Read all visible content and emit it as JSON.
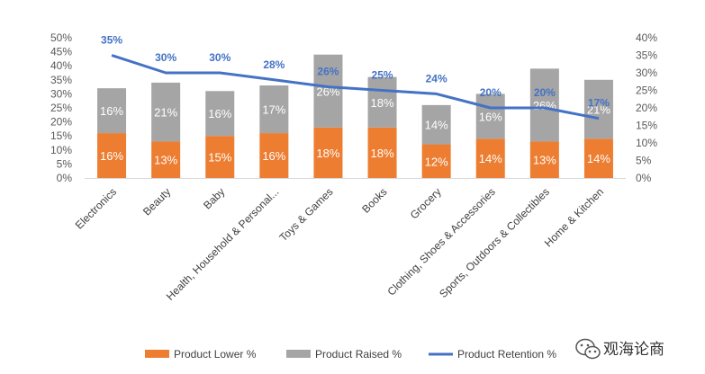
{
  "chart_data": {
    "type": "bar",
    "stacked": true,
    "categories": [
      "Electronics",
      "Beauty",
      "Baby",
      "Health, Household & Personal...",
      "Toys & Games",
      "Books",
      "Grocery",
      "Clothing, Shoes & Accessories",
      "Sports, Outdoors & Collectibles",
      "Home & Kitchen"
    ],
    "series": [
      {
        "name": "Product Lower %",
        "type": "bar",
        "axis": "left",
        "color": "#ED7D31",
        "values": [
          16,
          13,
          15,
          16,
          18,
          18,
          12,
          14,
          13,
          14
        ],
        "labels": [
          "16%",
          "13%",
          "15%",
          "16%",
          "18%",
          "18%",
          "12%",
          "14%",
          "13%",
          "14%"
        ]
      },
      {
        "name": "Product Raised %",
        "type": "bar",
        "axis": "left",
        "color": "#A5A5A5",
        "values": [
          16,
          21,
          16,
          17,
          26,
          18,
          14,
          16,
          26,
          21
        ],
        "labels": [
          "16%",
          "21%",
          "16%",
          "17%",
          "26%",
          "18%",
          "14%",
          "16%",
          "26%",
          "21%"
        ]
      },
      {
        "name": "Product Retention %",
        "type": "line",
        "axis": "right",
        "color": "#4472C4",
        "values": [
          35,
          30,
          30,
          28,
          26,
          25,
          24,
          20,
          20,
          17
        ],
        "labels": [
          "35%",
          "30%",
          "30%",
          "28%",
          "26%",
          "25%",
          "24%",
          "20%",
          "20%",
          "17%"
        ]
      }
    ],
    "y_left": {
      "ylim": [
        0,
        50
      ],
      "ticks": [
        "0%",
        "5%",
        "10%",
        "15%",
        "20%",
        "25%",
        "30%",
        "35%",
        "40%",
        "45%",
        "50%"
      ]
    },
    "y_right": {
      "ylim": [
        0,
        40
      ],
      "ticks": [
        "0%",
        "5%",
        "10%",
        "15%",
        "20%",
        "25%",
        "30%",
        "35%",
        "40%"
      ]
    },
    "grid": false,
    "legend_position": "bottom"
  },
  "watermark": {
    "text": "观海论商",
    "icon": "wechat-icon"
  }
}
